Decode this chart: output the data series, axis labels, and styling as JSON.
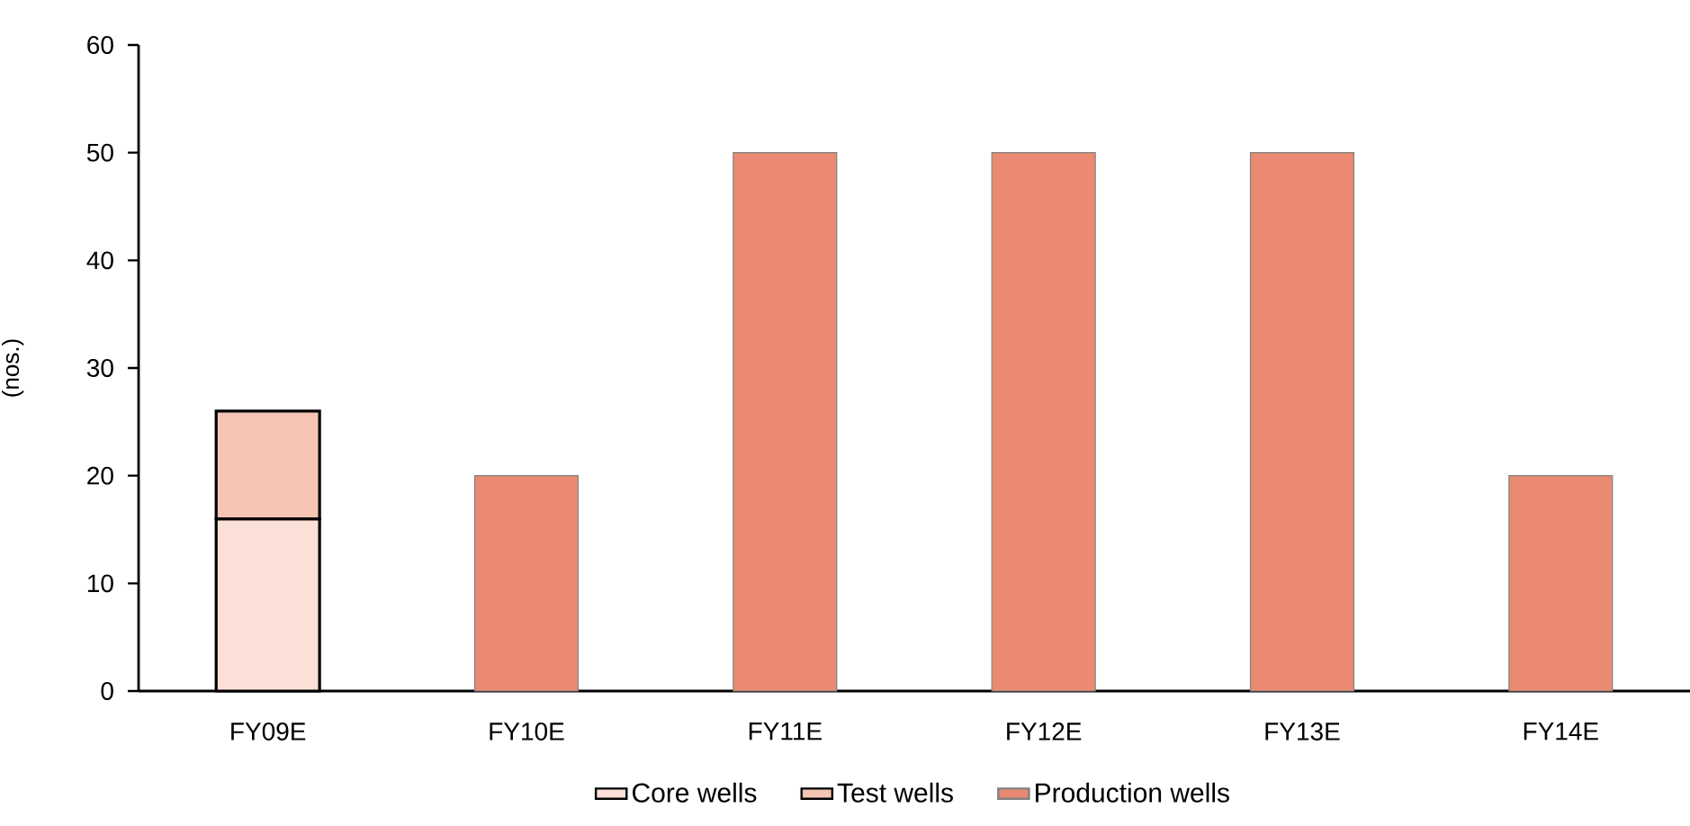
{
  "chart_data": {
    "type": "bar",
    "stacked": true,
    "ylabel": "(nos.)",
    "categories": [
      "FY09E",
      "FY10E",
      "FY11E",
      "FY12E",
      "FY13E",
      "FY14E"
    ],
    "series": [
      {
        "name": "Core wells",
        "color": "#fbe0d7",
        "values": [
          16,
          null,
          null,
          null,
          null,
          null
        ]
      },
      {
        "name": "Test wells",
        "color": "#f5c4b3",
        "values": [
          10,
          null,
          null,
          null,
          null,
          null
        ]
      },
      {
        "name": "Production wells",
        "color": "#ea8a72",
        "values": [
          null,
          20,
          50,
          50,
          50,
          20
        ]
      }
    ],
    "ylim": [
      0,
      60
    ],
    "yticks": [
      0,
      10,
      20,
      30,
      40,
      50,
      60
    ],
    "legend": "bottom",
    "grid": false
  }
}
